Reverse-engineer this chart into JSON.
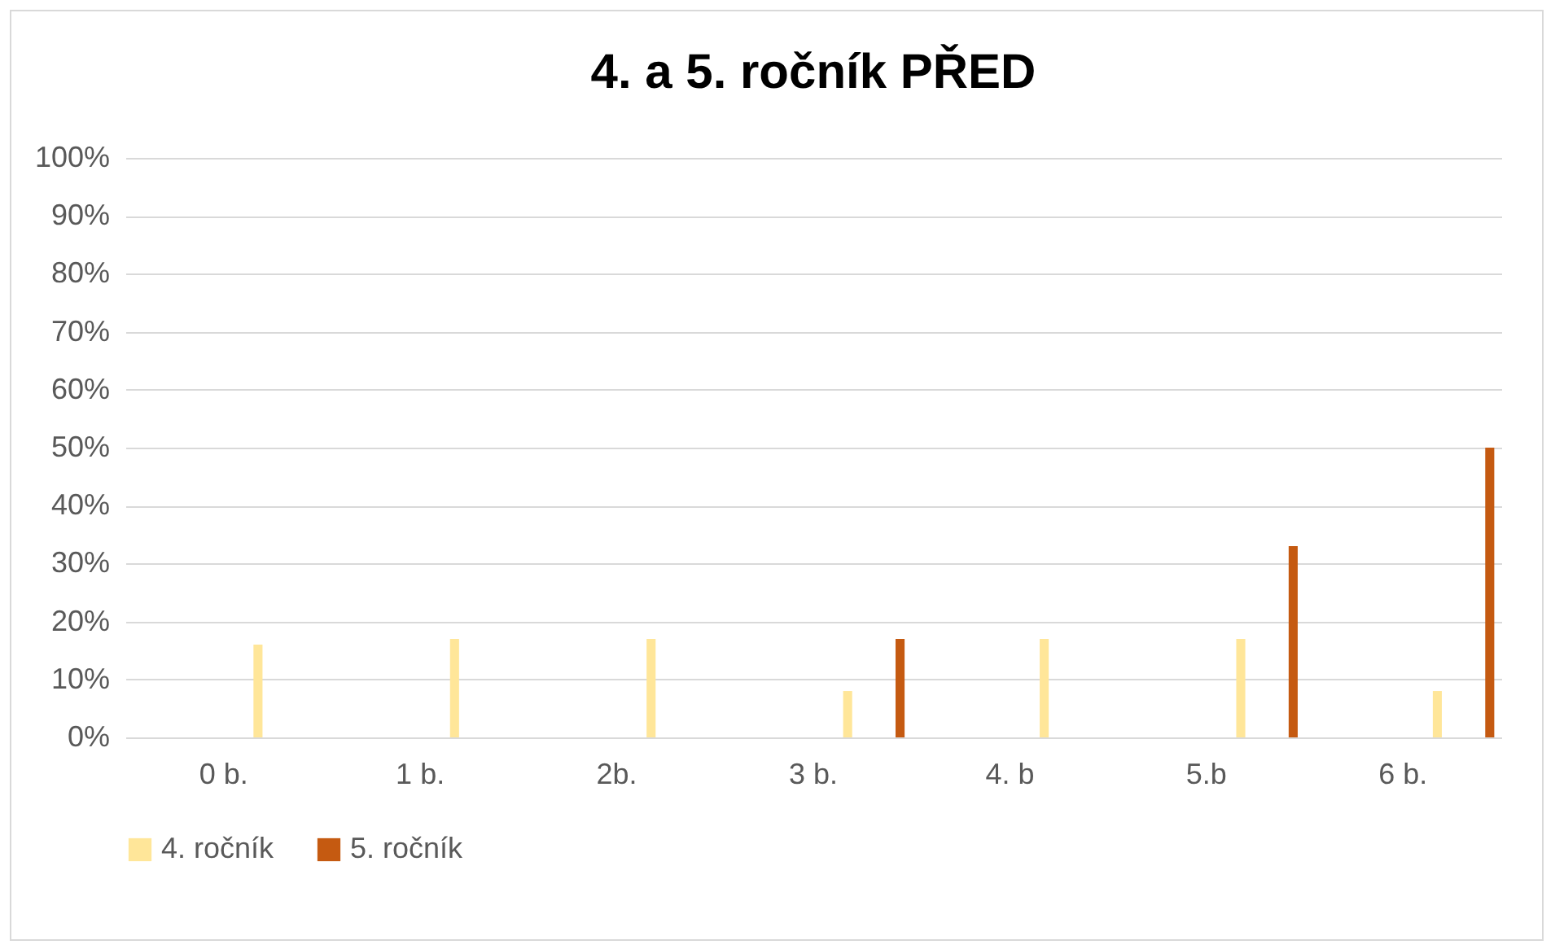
{
  "chart_data": {
    "type": "bar",
    "title": "4. a 5. ročník PŘED",
    "categories": [
      "0 b.",
      "1 b.",
      "2b.",
      "3 b.",
      "4. b",
      "5.b",
      "6 b."
    ],
    "series": [
      {
        "name": "4. ročník",
        "color": "#ffe699",
        "values": [
          16,
          17,
          17,
          8,
          17,
          17,
          8
        ]
      },
      {
        "name": "5. ročník",
        "color": "#c55a11",
        "values": [
          0,
          0,
          0,
          17,
          0,
          33,
          50
        ]
      }
    ],
    "ylim": [
      0,
      100
    ],
    "yticks": [
      {
        "value": 0,
        "label": "0%"
      },
      {
        "value": 10,
        "label": "10%"
      },
      {
        "value": 20,
        "label": "20%"
      },
      {
        "value": 30,
        "label": "30%"
      },
      {
        "value": 40,
        "label": "40%"
      },
      {
        "value": 50,
        "label": "50%"
      },
      {
        "value": 60,
        "label": "60%"
      },
      {
        "value": 70,
        "label": "70%"
      },
      {
        "value": 80,
        "label": "80%"
      },
      {
        "value": 90,
        "label": "90%"
      },
      {
        "value": 100,
        "label": "100%"
      }
    ],
    "grid": "y",
    "legend": "bottom"
  }
}
